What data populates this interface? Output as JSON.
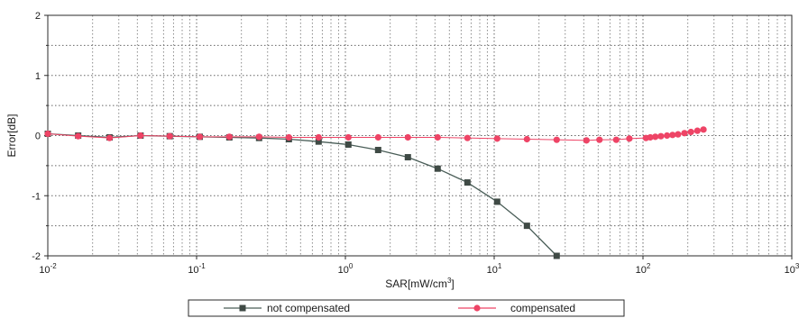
{
  "chart_data": {
    "type": "line",
    "title": "",
    "xlabel": "SAR[mW/cm",
    "xlabel_sup": "3",
    "xlabel_end": "]",
    "ylabel": "Error[dB]",
    "x_scale": "log",
    "xlim": [
      0.01,
      1000
    ],
    "ylim": [
      -2,
      2
    ],
    "x_ticks": [
      {
        "base": "10",
        "exp": "-2",
        "value": 0.01
      },
      {
        "base": "10",
        "exp": "-1",
        "value": 0.1
      },
      {
        "base": "10",
        "exp": "0",
        "value": 1
      },
      {
        "base": "10",
        "exp": "1",
        "value": 10
      },
      {
        "base": "10",
        "exp": "2",
        "value": 100
      },
      {
        "base": "10",
        "exp": "3",
        "value": 1000
      }
    ],
    "y_ticks": [
      {
        "label": "2",
        "value": 2
      },
      {
        "label": "1",
        "value": 1
      },
      {
        "label": "0",
        "value": 0
      },
      {
        "label": "-1",
        "value": -1
      },
      {
        "label": "-2",
        "value": -2
      }
    ],
    "grid": true,
    "legend_position": "bottom",
    "series": [
      {
        "name": "not compensated",
        "color": "#3f4a45",
        "marker": "square",
        "x": [
          0.01,
          0.016,
          0.026,
          0.042,
          0.066,
          0.105,
          0.166,
          0.263,
          0.417,
          0.661,
          1.047,
          1.66,
          2.63,
          4.17,
          6.61,
          10.47,
          16.6,
          26.3
        ],
        "y": [
          0.03,
          0.0,
          -0.03,
          0.0,
          -0.01,
          -0.02,
          -0.03,
          -0.04,
          -0.06,
          -0.1,
          -0.15,
          -0.24,
          -0.36,
          -0.55,
          -0.78,
          -1.1,
          -1.5,
          -2.0
        ]
      },
      {
        "name": "compensated",
        "color": "#ee4466",
        "marker": "circle",
        "x": [
          0.01,
          0.016,
          0.026,
          0.042,
          0.066,
          0.105,
          0.166,
          0.263,
          0.417,
          0.661,
          1.047,
          1.66,
          2.63,
          4.17,
          6.61,
          10.47,
          16.6,
          26.3,
          41.7,
          51.0,
          66.1,
          81.0,
          104.7,
          112.0,
          121.0,
          132.0,
          145.0,
          158.0,
          172.0,
          190.0,
          210.0,
          232.0,
          255.0
        ],
        "y": [
          0.03,
          -0.01,
          -0.04,
          0.0,
          -0.01,
          -0.02,
          -0.02,
          -0.02,
          -0.03,
          -0.03,
          -0.03,
          -0.03,
          -0.03,
          -0.03,
          -0.04,
          -0.05,
          -0.06,
          -0.07,
          -0.08,
          -0.07,
          -0.07,
          -0.05,
          -0.04,
          -0.03,
          -0.02,
          -0.01,
          0.0,
          0.01,
          0.02,
          0.04,
          0.06,
          0.08,
          0.1
        ]
      }
    ]
  }
}
